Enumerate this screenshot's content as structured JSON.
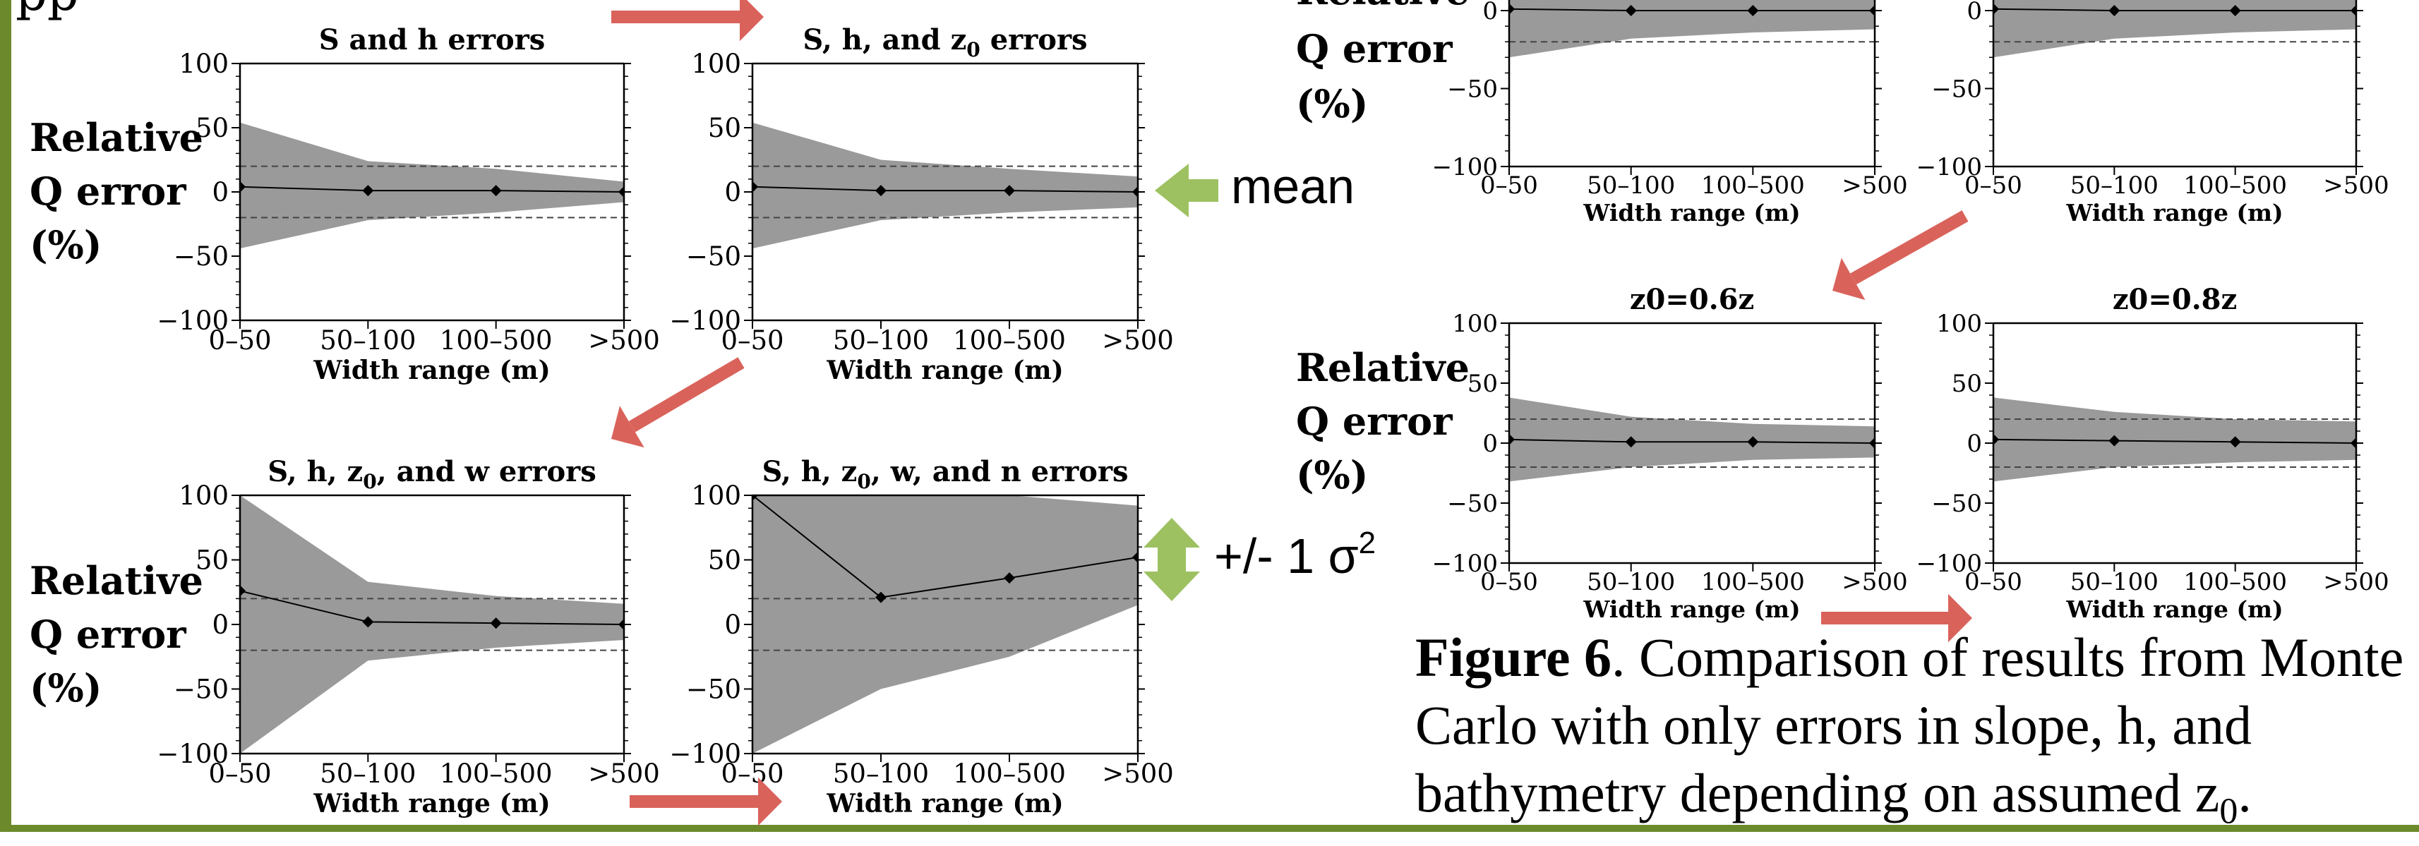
{
  "colors": {
    "band": "#9a9a9a",
    "arrow_red": "#d9635b",
    "arrow_green": "#9dc161",
    "frame": "#6c8a2b"
  },
  "left_cut_text": "pp",
  "relative_q_error": [
    "Relative",
    "Q error",
    "(%)"
  ],
  "annotations": {
    "mean": "mean",
    "sigma": "+/- 1 σ",
    "sigma_sup": "2"
  },
  "caption": {
    "bold": "Figure 6",
    "text": ". Comparison of results from Monte Carlo with only errors in slope, h, and bathymetry depending on assumed z",
    "sub": "0",
    "end": "."
  },
  "chart_data": [
    {
      "id": "p1",
      "type": "area",
      "title": "S and  h errors",
      "xlabel": "Width range (m)",
      "categories": [
        "0–50",
        "50–100",
        "100–500",
        ">500"
      ],
      "yticks": [
        "100",
        "50",
        "0",
        "−50",
        "−100"
      ],
      "ylim": [
        -100,
        100
      ],
      "mean": [
        4,
        1,
        1,
        0
      ],
      "upper": [
        54,
        24,
        18,
        8
      ],
      "lower": [
        -44,
        -22,
        -16,
        -8
      ],
      "threshold_lines": [
        20,
        -20
      ]
    },
    {
      "id": "p2",
      "type": "area",
      "title": "S, h, and z",
      "title_sub": "0",
      "title_suffix": " errors",
      "xlabel": "Width range (m)",
      "categories": [
        "0–50",
        "50–100",
        "100–500",
        ">500"
      ],
      "yticks": [
        "100",
        "50",
        "0",
        "−50",
        "−100"
      ],
      "ylim": [
        -100,
        100
      ],
      "mean": [
        4,
        1,
        1,
        0
      ],
      "upper": [
        54,
        25,
        18,
        12
      ],
      "lower": [
        -44,
        -22,
        -16,
        -12
      ],
      "threshold_lines": [
        20,
        -20
      ]
    },
    {
      "id": "p3",
      "type": "area",
      "title": "S, h, z",
      "title_sub": "0",
      "title_suffix": ", and w errors",
      "xlabel": "Width range (m)",
      "categories": [
        "0–50",
        "50–100",
        "100–500",
        ">500"
      ],
      "yticks": [
        "100",
        "50",
        "0",
        "−50",
        "−100"
      ],
      "ylim": [
        -100,
        100
      ],
      "mean": [
        26,
        2,
        1,
        0
      ],
      "upper": [
        100,
        33,
        22,
        16
      ],
      "lower": [
        -100,
        -28,
        -18,
        -12
      ],
      "threshold_lines": [
        20,
        -20
      ]
    },
    {
      "id": "p4",
      "type": "area",
      "title": "S, h, z",
      "title_sub": "0",
      "title_suffix": ", w, and n errors",
      "xlabel": "Width range (m)",
      "categories": [
        "0–50",
        "50–100",
        "100–500",
        ">500"
      ],
      "yticks": [
        "100",
        "50",
        "0",
        "−50",
        "−100"
      ],
      "ylim": [
        -100,
        100
      ],
      "mean": [
        100,
        21,
        36,
        52
      ],
      "upper": [
        100,
        100,
        100,
        92
      ],
      "lower": [
        -100,
        -50,
        -25,
        15
      ],
      "threshold_lines": [
        20,
        -20
      ]
    },
    {
      "id": "p5",
      "type": "area",
      "title": "",
      "xlabel": "Width range (m)",
      "categories": [
        "0–50",
        "50–100",
        "100–500",
        ">500"
      ],
      "yticks": [
        "0",
        "−50",
        "−100"
      ],
      "ylim": [
        -100,
        100
      ],
      "mean": [
        1,
        0,
        0,
        0
      ],
      "upper": [
        33,
        18,
        14,
        12
      ],
      "lower": [
        -30,
        -18,
        -14,
        -12
      ],
      "threshold_lines": [
        20,
        -20
      ]
    },
    {
      "id": "p6",
      "type": "area",
      "title": "",
      "xlabel": "Width range (m)",
      "categories": [
        "0–50",
        "50–100",
        "100–500",
        ">500"
      ],
      "yticks": [
        "0",
        "−50",
        "−100"
      ],
      "ylim": [
        -100,
        100
      ],
      "mean": [
        1,
        0,
        0,
        0
      ],
      "upper": [
        33,
        20,
        16,
        14
      ],
      "lower": [
        -30,
        -18,
        -14,
        -12
      ],
      "threshold_lines": [
        20,
        -20
      ]
    },
    {
      "id": "p7",
      "type": "area",
      "title": "z0=0.6z",
      "xlabel": "Width range (m)",
      "categories": [
        "0–50",
        "50–100",
        "100–500",
        ">500"
      ],
      "yticks": [
        "100",
        "50",
        "0",
        "−50",
        "−100"
      ],
      "ylim": [
        -100,
        100
      ],
      "mean": [
        3,
        1,
        1,
        0
      ],
      "upper": [
        38,
        22,
        16,
        14
      ],
      "lower": [
        -32,
        -20,
        -14,
        -12
      ],
      "threshold_lines": [
        20,
        -20
      ]
    },
    {
      "id": "p8",
      "type": "area",
      "title": "z0=0.8z",
      "xlabel": "Width range (m)",
      "categories": [
        "0–50",
        "50–100",
        "100–500",
        ">500"
      ],
      "yticks": [
        "100",
        "50",
        "0",
        "−50",
        "−100"
      ],
      "ylim": [
        -100,
        100
      ],
      "mean": [
        3,
        2,
        1,
        0
      ],
      "upper": [
        38,
        26,
        20,
        18
      ],
      "lower": [
        -32,
        -20,
        -16,
        -14
      ],
      "threshold_lines": [
        20,
        -20
      ]
    }
  ]
}
